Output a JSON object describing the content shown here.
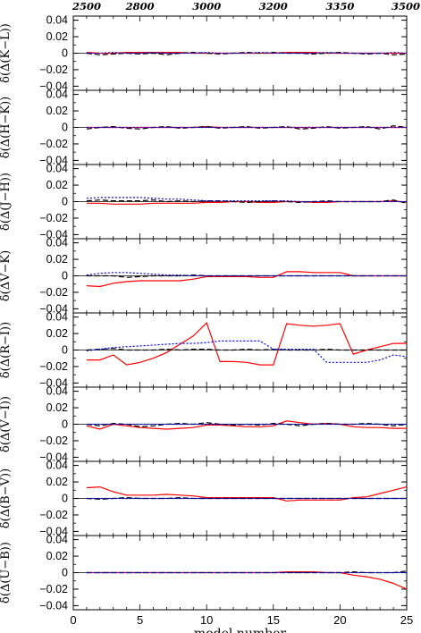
{
  "chart_data": {
    "type": "line",
    "xlabel": "model number",
    "xlim": [
      0,
      25
    ],
    "x_ticks": [
      0,
      5,
      10,
      15,
      20,
      25
    ],
    "top_axis": {
      "ticks": [
        {
          "x": 0,
          "label": "2500"
        },
        {
          "x": 5,
          "label": "2800"
        },
        {
          "x": 10,
          "label": "3000"
        },
        {
          "x": 15,
          "label": "3200"
        },
        {
          "x": 20,
          "label": "3350"
        },
        {
          "x": 25,
          "label": "3500"
        }
      ]
    },
    "ylim": [
      -0.045,
      0.045
    ],
    "y_ticks": [
      0.04,
      0.02,
      0,
      -0.02,
      -0.04
    ],
    "y_tick_labels": [
      "0.04",
      "0.02",
      "0",
      "−0.02",
      "−0.04"
    ],
    "zero_line": true,
    "series_styles": [
      {
        "color": "#ff0000",
        "dash": "solid"
      },
      {
        "color": "#000000",
        "dash": "dashed"
      },
      {
        "color": "#0000ff",
        "dash": "dotted"
      }
    ],
    "panels": [
      {
        "ylabel": "δ(Δ(K−L))",
        "x": [
          1,
          2,
          3,
          4,
          5,
          6,
          7,
          8,
          9,
          10,
          11,
          12,
          13,
          14,
          15,
          16,
          17,
          18,
          19,
          20,
          21,
          22,
          23,
          24,
          25
        ],
        "series": [
          {
            "values": [
              0.001,
              0,
              0,
              0.001,
              0.001,
              0.001,
              0.001,
              0.001,
              0,
              0,
              0,
              0,
              0,
              0,
              0,
              0.001,
              0.001,
              0.001,
              0,
              0,
              0,
              0,
              0,
              0,
              0
            ]
          },
          {
            "values": [
              0,
              -0.002,
              -0.001,
              0,
              -0.001,
              0,
              -0.002,
              0,
              0.001,
              0,
              -0.001,
              0,
              0.001,
              0,
              0.001,
              0,
              0,
              -0.001,
              0,
              0.001,
              0,
              -0.001,
              0,
              -0.002,
              -0.001
            ]
          },
          {
            "values": [
              0,
              0,
              0.001,
              0,
              0,
              0.001,
              0,
              0,
              0,
              0.001,
              0,
              0,
              0,
              0.001,
              0,
              0,
              0,
              0,
              0.001,
              0,
              0,
              0,
              0,
              0.001,
              0
            ]
          }
        ]
      },
      {
        "ylabel": "δ(Δ(H−K))",
        "x": [
          1,
          2,
          3,
          4,
          5,
          6,
          7,
          8,
          9,
          10,
          11,
          12,
          13,
          14,
          15,
          16,
          17,
          18,
          19,
          20,
          21,
          22,
          23,
          24,
          25
        ],
        "series": [
          {
            "values": [
              0,
              0,
              0,
              0,
              0,
              0,
              0,
              0,
              0,
              0.001,
              0,
              0,
              0,
              0,
              0,
              0,
              0,
              0,
              0,
              0,
              0,
              0,
              0,
              0,
              0
            ]
          },
          {
            "values": [
              -0.002,
              0,
              0.001,
              -0.001,
              -0.002,
              0,
              0.001,
              -0.001,
              0,
              0.001,
              -0.001,
              0,
              0.001,
              -0.001,
              0,
              0.001,
              -0.002,
              -0.001,
              0.001,
              -0.001,
              0,
              0.001,
              -0.002,
              0.002,
              0
            ]
          },
          {
            "values": [
              0,
              0,
              0,
              0,
              0,
              0,
              0,
              0,
              0,
              0,
              0,
              0,
              0,
              0,
              0,
              0,
              0,
              0,
              0,
              0,
              0,
              0,
              0,
              0,
              0
            ]
          }
        ]
      },
      {
        "ylabel": "δ(Δ(J−H))",
        "x": [
          1,
          2,
          3,
          4,
          5,
          6,
          7,
          8,
          9,
          10,
          11,
          12,
          13,
          14,
          15,
          16,
          17,
          18,
          19,
          20,
          21,
          22,
          23,
          24,
          25
        ],
        "series": [
          {
            "values": [
              -0.002,
              -0.002,
              -0.003,
              -0.003,
              -0.003,
              -0.002,
              -0.002,
              -0.002,
              -0.002,
              -0.001,
              -0.001,
              0,
              0,
              -0.001,
              -0.001,
              0,
              0,
              -0.001,
              -0.001,
              0,
              0,
              0,
              0,
              0.001,
              -0.001
            ]
          },
          {
            "values": [
              0.001,
              0.002,
              0.001,
              0.001,
              0.001,
              0.002,
              0,
              0.001,
              0,
              0.001,
              0.001,
              0,
              -0.001,
              0,
              0.001,
              0,
              -0.001,
              0,
              0.001,
              0,
              0,
              0,
              0,
              0.002,
              -0.002
            ]
          },
          {
            "values": [
              0.004,
              0.005,
              0.005,
              0.005,
              0.005,
              0.004,
              0.003,
              0.003,
              0.002,
              0.001,
              0.001,
              0.001,
              0.001,
              0.001,
              0.001,
              0.001,
              0,
              0,
              0,
              0,
              0,
              0,
              0,
              0,
              0
            ]
          }
        ]
      },
      {
        "ylabel": "δ(ΔV−K)",
        "x": [
          1,
          2,
          3,
          4,
          5,
          6,
          7,
          8,
          9,
          10,
          11,
          12,
          13,
          14,
          15,
          16,
          17,
          18,
          19,
          20,
          21,
          22,
          23,
          24,
          25
        ],
        "series": [
          {
            "values": [
              -0.012,
              -0.013,
              -0.009,
              -0.007,
              -0.006,
              -0.006,
              -0.006,
              -0.006,
              -0.004,
              -0.001,
              -0.001,
              -0.001,
              -0.001,
              -0.002,
              -0.002,
              0.005,
              0.005,
              0.004,
              0.004,
              0.004,
              0,
              0,
              0,
              0,
              0
            ]
          },
          {
            "values": [
              0,
              0,
              0,
              -0.002,
              -0.001,
              0,
              0,
              0,
              0.001,
              0,
              0,
              0,
              0,
              0,
              0,
              0,
              0,
              0,
              0,
              0,
              0,
              0,
              0,
              0,
              0
            ]
          },
          {
            "values": [
              0.001,
              0.003,
              0.004,
              0.004,
              0.003,
              0.002,
              0.001,
              0.001,
              0,
              0,
              0,
              0,
              0,
              0,
              0,
              0,
              0,
              0,
              0,
              0,
              0,
              0,
              0,
              0,
              0
            ]
          }
        ]
      },
      {
        "ylabel": "δ(Δ(R−I))",
        "x": [
          1,
          2,
          3,
          4,
          5,
          6,
          7,
          8,
          9,
          10,
          11,
          12,
          13,
          14,
          15,
          16,
          17,
          18,
          19,
          20,
          21,
          22,
          23,
          24,
          25
        ],
        "series": [
          {
            "values": [
              -0.012,
              -0.012,
              -0.006,
              -0.018,
              -0.015,
              -0.01,
              -0.003,
              0.007,
              0.017,
              0.033,
              -0.014,
              -0.014,
              -0.015,
              -0.018,
              -0.018,
              0.032,
              0.03,
              0.029,
              0.03,
              0.032,
              -0.005,
              0.0,
              0.004,
              0.008,
              0.008
            ]
          },
          {
            "values": [
              0,
              0.001,
              0.002,
              0,
              0,
              0,
              0.001,
              0,
              0.001,
              0.001,
              0,
              0,
              0.001,
              0,
              0.001,
              0,
              0,
              0,
              0.001,
              0,
              0,
              0,
              0,
              0,
              0
            ]
          },
          {
            "values": [
              -0.001,
              0.001,
              0.003,
              0.004,
              0.005,
              0.006,
              0.007,
              0.008,
              0.008,
              0.009,
              0.011,
              0.011,
              0.011,
              0.011,
              0.001,
              0.001,
              0.001,
              0.001,
              -0.015,
              -0.015,
              -0.015,
              -0.015,
              -0.012,
              -0.006,
              -0.008
            ]
          }
        ]
      },
      {
        "ylabel": "δ(Δ(V−I))",
        "x": [
          1,
          2,
          3,
          4,
          5,
          6,
          7,
          8,
          9,
          10,
          11,
          12,
          13,
          14,
          15,
          16,
          17,
          18,
          19,
          20,
          21,
          22,
          23,
          24,
          25
        ],
        "series": [
          {
            "values": [
              -0.002,
              -0.006,
              0,
              -0.002,
              -0.004,
              -0.005,
              -0.006,
              -0.005,
              -0.004,
              -0.001,
              -0.001,
              -0.002,
              -0.003,
              -0.003,
              -0.002,
              0.004,
              0.002,
              0,
              0.001,
              0,
              -0.003,
              -0.004,
              -0.004,
              -0.005,
              -0.005
            ]
          },
          {
            "values": [
              0,
              -0.002,
              0.001,
              0,
              -0.003,
              -0.002,
              0,
              0.001,
              0,
              0.002,
              0,
              -0.001,
              0,
              -0.001,
              0.001,
              0,
              -0.002,
              0,
              0.001,
              0,
              0,
              0.001,
              0,
              -0.002,
              0
            ]
          },
          {
            "values": [
              0,
              0,
              0,
              0,
              0,
              0,
              0,
              0,
              0,
              0,
              0,
              0,
              0,
              0,
              0,
              0,
              0,
              0,
              0,
              0,
              0,
              0,
              0,
              0,
              0
            ]
          }
        ]
      },
      {
        "ylabel": "δ(Δ(B−V))",
        "x": [
          1,
          2,
          3,
          4,
          5,
          6,
          7,
          8,
          9,
          10,
          11,
          12,
          13,
          14,
          15,
          16,
          17,
          18,
          19,
          20,
          21,
          22,
          23,
          24,
          25
        ],
        "series": [
          {
            "values": [
              0.013,
              0.014,
              0.008,
              0.004,
              0.004,
              0.004,
              0.005,
              0.004,
              0.003,
              0.001,
              0.001,
              0.001,
              0.001,
              0.001,
              0.001,
              -0.003,
              -0.002,
              -0.002,
              -0.002,
              -0.002,
              0.001,
              0.002,
              0.006,
              0.01,
              0.014
            ]
          },
          {
            "values": [
              0,
              -0.001,
              0,
              0.001,
              0,
              0,
              0,
              0.001,
              0,
              0,
              0,
              0,
              0,
              0,
              0,
              0,
              0,
              0,
              0,
              0,
              0,
              0,
              0,
              0,
              0
            ]
          },
          {
            "values": [
              0,
              0,
              0,
              0,
              0,
              0,
              0,
              0,
              0,
              0,
              0,
              0,
              0,
              0,
              0,
              0,
              0,
              0,
              0,
              0,
              0,
              0,
              0,
              0,
              0
            ]
          }
        ]
      },
      {
        "ylabel": "δ(Δ(U−B))",
        "x": [
          1,
          2,
          3,
          4,
          5,
          6,
          7,
          8,
          9,
          10,
          11,
          12,
          13,
          14,
          15,
          16,
          17,
          18,
          19,
          20,
          21,
          22,
          23,
          24,
          25
        ],
        "series": [
          {
            "values": [
              0,
              0,
              0,
              0,
              0,
              0,
              0,
              0,
              0,
              0,
              0,
              0,
              0,
              0,
              0,
              0.001,
              0.001,
              0.001,
              0,
              0,
              -0.003,
              -0.005,
              -0.008,
              -0.013,
              -0.02
            ]
          },
          {
            "values": [
              0,
              0,
              0,
              0,
              0,
              0,
              0,
              0,
              0,
              0,
              0,
              0,
              0,
              0,
              0,
              0,
              0,
              0,
              0,
              0,
              0.001,
              0,
              0,
              0,
              0.002
            ]
          },
          {
            "values": [
              0,
              0,
              0,
              0,
              0,
              0,
              0,
              0,
              0,
              0,
              0,
              0,
              0,
              0,
              0,
              0,
              0,
              0,
              0,
              0,
              0,
              0,
              0,
              0,
              0
            ]
          }
        ]
      }
    ]
  }
}
